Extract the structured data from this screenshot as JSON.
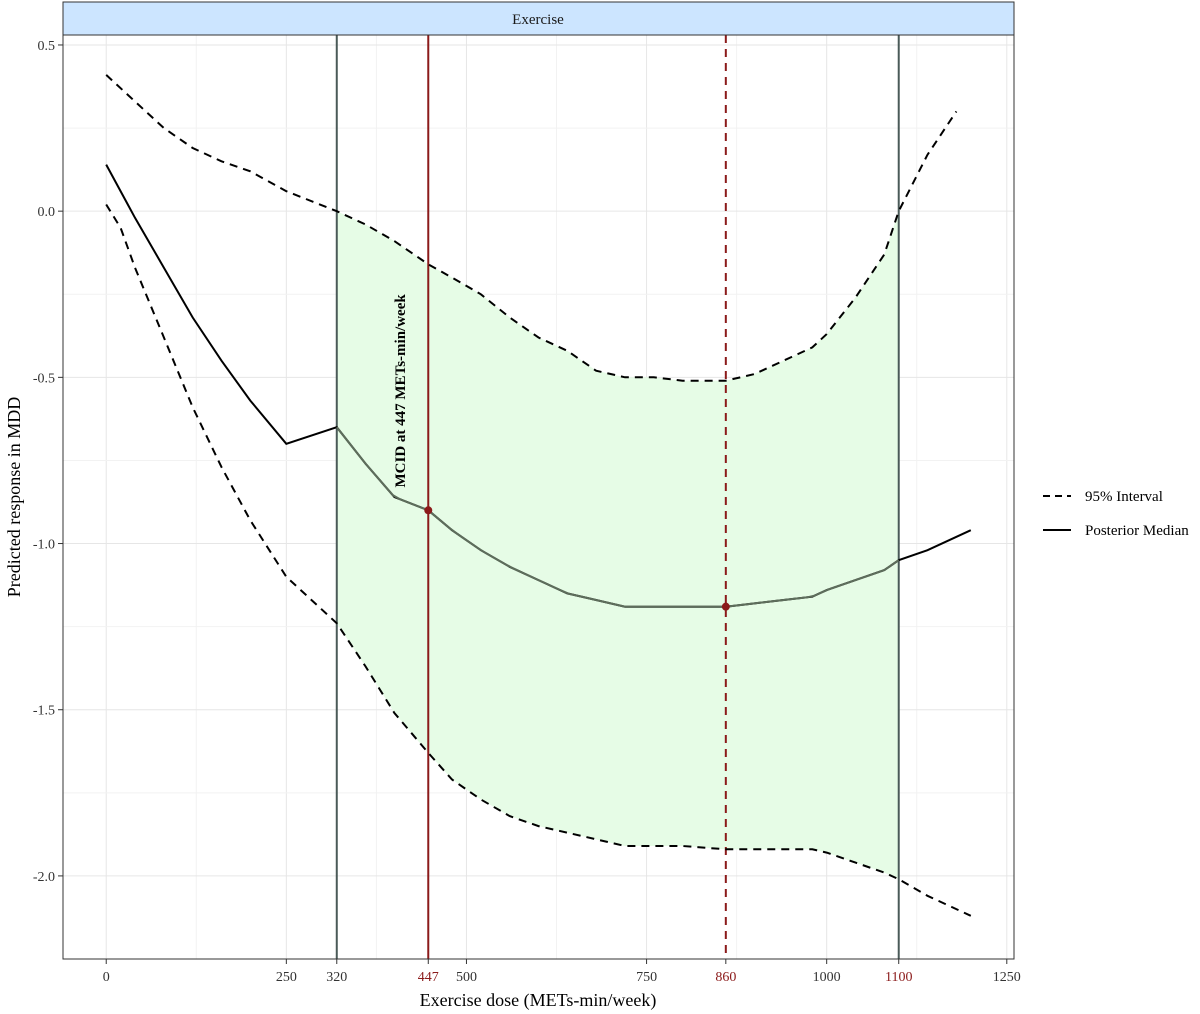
{
  "chart_data": {
    "type": "line",
    "panel_title": "Exercise",
    "xlabel": "Exercise dose (METs-min/week)",
    "ylabel": "Predicted response in MDD",
    "xlim": [
      -60,
      1260
    ],
    "ylim": [
      -2.25,
      0.53
    ],
    "x_ticks": [
      0,
      250,
      320,
      447,
      500,
      750,
      860,
      1000,
      1100,
      1250
    ],
    "x_tick_labels": [
      "0",
      "250",
      "320",
      "447",
      "500",
      "750",
      "860",
      "1000",
      "1100",
      "1250"
    ],
    "x_ticks_highlighted": [
      "447",
      "860",
      "1100"
    ],
    "y_ticks": [
      0.5,
      0.0,
      -0.5,
      -1.0,
      -1.5,
      -2.0
    ],
    "y_tick_labels": [
      "0.5",
      "0.0",
      "-0.5",
      "-1.0",
      "-1.5",
      "-2.0"
    ],
    "grid": true,
    "legend_position": "right",
    "series": [
      {
        "name": "95% Interval",
        "style": "dashed",
        "color": "#000000",
        "x": [
          0,
          40,
          80,
          120,
          160,
          200,
          250,
          320,
          360,
          400,
          447,
          480,
          520,
          560,
          600,
          640,
          680,
          720,
          760,
          800,
          860,
          900,
          940,
          980,
          1000,
          1040,
          1080,
          1100,
          1140,
          1180
        ],
        "y": [
          0.41,
          0.33,
          0.25,
          0.19,
          0.15,
          0.12,
          0.06,
          0.0,
          -0.04,
          -0.09,
          -0.16,
          -0.2,
          -0.25,
          -0.32,
          -0.38,
          -0.42,
          -0.48,
          -0.5,
          -0.5,
          -0.51,
          -0.51,
          -0.49,
          -0.45,
          -0.41,
          -0.37,
          -0.26,
          -0.13,
          0.0,
          0.17,
          0.3
        ]
      },
      {
        "name": "",
        "style": "dashed",
        "color": "#000000",
        "x": [
          0,
          20,
          40,
          80,
          120,
          160,
          200,
          250,
          320,
          360,
          400,
          447,
          480,
          520,
          560,
          600,
          640,
          680,
          720,
          760,
          800,
          860,
          900,
          940,
          980,
          1000,
          1040,
          1080,
          1100,
          1140,
          1200
        ],
        "y": [
          0.02,
          -0.05,
          -0.17,
          -0.38,
          -0.59,
          -0.77,
          -0.93,
          -1.1,
          -1.24,
          -1.37,
          -1.51,
          -1.63,
          -1.71,
          -1.77,
          -1.82,
          -1.85,
          -1.87,
          -1.89,
          -1.91,
          -1.91,
          -1.91,
          -1.92,
          -1.92,
          -1.92,
          -1.92,
          -1.93,
          -1.96,
          -1.99,
          -2.01,
          -2.06,
          -2.12
        ]
      },
      {
        "name": "Posterior Median",
        "style": "solid",
        "color": "#000000",
        "x": [
          0,
          40,
          80,
          120,
          160,
          200,
          250,
          320,
          360,
          400,
          447,
          480,
          520,
          560,
          600,
          640,
          680,
          720,
          760,
          800,
          860,
          900,
          940,
          980,
          1000,
          1040,
          1080,
          1100,
          1140,
          1200
        ],
        "y": [
          0.14,
          -0.02,
          -0.17,
          -0.32,
          -0.45,
          -0.57,
          -0.7,
          -0.65,
          -0.76,
          -0.86,
          -0.9,
          -0.96,
          -1.02,
          -1.07,
          -1.11,
          -1.15,
          -1.17,
          -1.19,
          -1.19,
          -1.19,
          -1.19,
          -1.18,
          -1.17,
          -1.16,
          -1.14,
          -1.11,
          -1.08,
          -1.05,
          -1.02,
          -0.96
        ]
      }
    ],
    "shaded_region": {
      "x_from": 320,
      "x_to": 1100,
      "color": "#e6fce6"
    },
    "vertical_lines": [
      {
        "x": 320,
        "style": "solid",
        "color": "#4a5a58"
      },
      {
        "x": 447,
        "style": "solid",
        "color": "#8b1a1a"
      },
      {
        "x": 860,
        "style": "dashed",
        "color": "#8b1a1a"
      },
      {
        "x": 1100,
        "style": "solid",
        "color": "#4a5a58"
      }
    ],
    "points": [
      {
        "x": 447,
        "y": -0.9,
        "color": "#8b1a1a"
      },
      {
        "x": 860,
        "y": -1.19,
        "color": "#8b1a1a"
      }
    ],
    "annotations": [
      {
        "text": "MCID at 447 METs-min/week",
        "x": 415,
        "y": -0.25,
        "rotation": -90
      }
    ],
    "legend": [
      {
        "label": "95% Interval",
        "style": "dashed"
      },
      {
        "label": "Posterior Median",
        "style": "solid"
      }
    ]
  }
}
